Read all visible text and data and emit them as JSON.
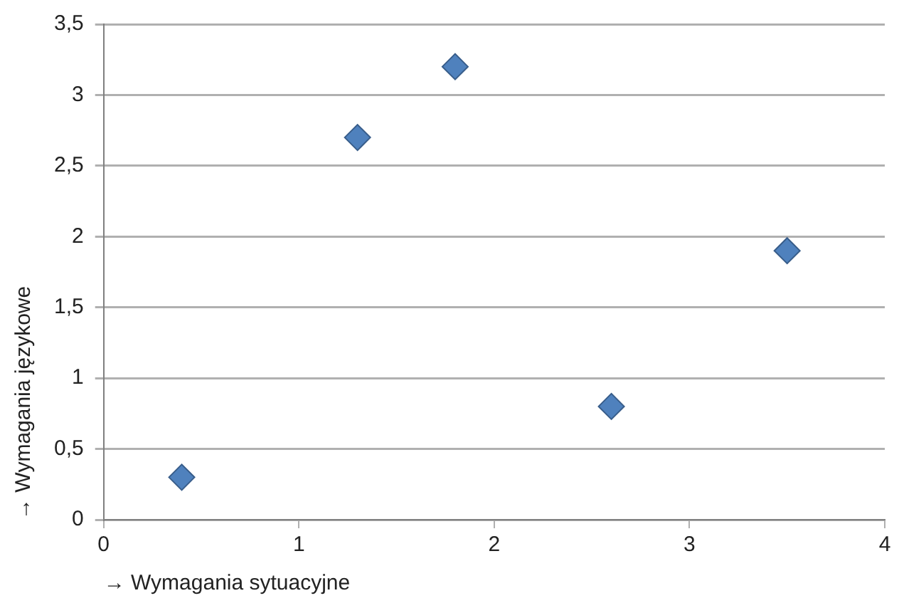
{
  "chart_data": {
    "type": "scatter",
    "xlabel": "→ Wymagania sytuacyjne",
    "ylabel": "→ Wymagania językowe",
    "x": [
      0.4,
      1.3,
      1.8,
      2.6,
      3.5
    ],
    "series": [
      {
        "color": "#4f81bd",
        "values": [
          0.3,
          2.7,
          3.2,
          0.8,
          1.9
        ]
      }
    ],
    "marker": "diamond",
    "grid": "y",
    "legend": false,
    "xlim": [
      0,
      4
    ],
    "xticks": [
      0,
      1,
      2,
      3,
      4
    ],
    "ylim": [
      0,
      3.5
    ],
    "yticks": [
      0,
      {
        "value": 0.5,
        "label": "0,5"
      },
      1,
      {
        "value": 1.5,
        "label": "1,5"
      },
      2,
      {
        "value": 2.5,
        "label": "2,5"
      },
      3,
      {
        "value": 3.5,
        "label": "3,5"
      }
    ]
  }
}
